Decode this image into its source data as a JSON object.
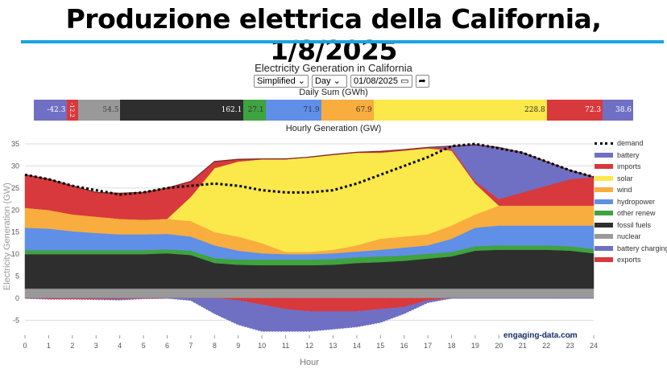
{
  "banner_title": "Produzione elettrica della California, 1/8/2025",
  "colors": {
    "banner_line": "#1aa3e0"
  },
  "controls": {
    "mode": "Simplified",
    "period": "Day",
    "date": "01/08/2025",
    "go_icon": "share-arrow-icon"
  },
  "watermark": "engaging-data.com",
  "daily_sum": {
    "title": "Daily Sum (GWh)",
    "segments": [
      {
        "name": "battery charging",
        "value": "-42.3",
        "abs": 42.3,
        "color": "#6f6fc4",
        "text": "#fff"
      },
      {
        "name": "exports",
        "value": "-12.2",
        "abs": 12.2,
        "color": "#d8393c",
        "text": "#fff"
      },
      {
        "name": "nuclear",
        "value": "54.5",
        "abs": 54.5,
        "color": "#999999",
        "text": "#444"
      },
      {
        "name": "fossil fuels",
        "value": "162.1",
        "abs": 162.1,
        "color": "#2e2e2e",
        "text": "#fff"
      },
      {
        "name": "other renew",
        "value": "27.1",
        "abs": 27.1,
        "color": "#3fa33f",
        "text": "#333"
      },
      {
        "name": "hydropower",
        "value": "71.9",
        "abs": 71.9,
        "color": "#5f8fe6",
        "text": "#335"
      },
      {
        "name": "wind",
        "value": "67.9",
        "abs": 67.9,
        "color": "#f8ad3e",
        "text": "#333"
      },
      {
        "name": "solar",
        "value": "228.8",
        "abs": 228.8,
        "color": "#fbe84a",
        "text": "#333"
      },
      {
        "name": "imports",
        "value": "72.3",
        "abs": 72.3,
        "color": "#d8393c",
        "text": "#fff"
      },
      {
        "name": "battery",
        "value": "38.6",
        "abs": 38.6,
        "color": "#6f6fc4",
        "text": "#fff"
      }
    ]
  },
  "chart_data": {
    "type": "area",
    "title": "Electricity Generation in California",
    "subtitle": "Hourly Generation (GW)",
    "xlabel": "Hour",
    "ylabel": "Electricity Generation (GW)",
    "xlim": [
      0,
      24
    ],
    "ylim": [
      -8.3,
      36.5
    ],
    "xticks": [
      0,
      1,
      2,
      3,
      4,
      5,
      6,
      7,
      8,
      9,
      10,
      11,
      12,
      13,
      14,
      15,
      16,
      17,
      18,
      19,
      20,
      21,
      22,
      23,
      24
    ],
    "yticks": [
      -5,
      0,
      5,
      10,
      15,
      20,
      25,
      30,
      35
    ],
    "legend_position": "right",
    "x": [
      0,
      1,
      2,
      3,
      4,
      5,
      6,
      7,
      8,
      9,
      10,
      11,
      12,
      13,
      14,
      15,
      16,
      17,
      18,
      19,
      20,
      21,
      22,
      23,
      24
    ],
    "stacked_series": [
      {
        "name": "nuclear",
        "color": "#999999",
        "values": [
          2.2,
          2.2,
          2.2,
          2.2,
          2.2,
          2.2,
          2.2,
          2.2,
          2.2,
          2.2,
          2.2,
          2.2,
          2.2,
          2.2,
          2.2,
          2.2,
          2.2,
          2.2,
          2.2,
          2.2,
          2.2,
          2.2,
          2.2,
          2.2,
          2.2
        ]
      },
      {
        "name": "fossil fuels",
        "color": "#2e2e2e",
        "values": [
          7.8,
          7.8,
          7.8,
          7.8,
          7.8,
          7.8,
          8,
          7.6,
          5.8,
          5.4,
          5.3,
          5.3,
          5.3,
          5.4,
          5.8,
          6,
          6.3,
          6.8,
          7.3,
          8.6,
          8.8,
          8.8,
          8.8,
          8.6,
          8
        ]
      },
      {
        "name": "other renew",
        "color": "#3fa33f",
        "values": [
          0.9,
          0.9,
          0.9,
          0.9,
          0.9,
          0.9,
          0.9,
          1,
          1.1,
          1.2,
          1.3,
          1.3,
          1.3,
          1.3,
          1.3,
          1.3,
          1.2,
          1.1,
          1,
          1,
          1,
          1,
          1,
          1,
          1
        ]
      },
      {
        "name": "hydropower",
        "color": "#5f8fe6",
        "values": [
          5.1,
          4.9,
          4.3,
          3.9,
          3.6,
          3.6,
          3.5,
          3.2,
          2.9,
          2,
          1.4,
          1.2,
          1.2,
          1.3,
          1.3,
          1.5,
          1.8,
          1.9,
          3,
          4.2,
          4.5,
          4.5,
          4.5,
          4.7,
          5.3
        ]
      },
      {
        "name": "wind",
        "color": "#f8ad3e",
        "values": [
          4.5,
          4.2,
          3.8,
          3.7,
          3.5,
          3.3,
          3.4,
          3.5,
          3,
          3.2,
          2.3,
          0.5,
          0.5,
          0.8,
          1.4,
          2.5,
          2.5,
          2.5,
          3,
          3,
          4.5,
          4.5,
          4.5,
          4.5,
          4.5
        ]
      },
      {
        "name": "solar",
        "color": "#fbe84a",
        "values": [
          0,
          0,
          0,
          0,
          0,
          0,
          0,
          5.5,
          14.5,
          17,
          19,
          21,
          21.5,
          21.5,
          21,
          19.5,
          19.5,
          19.5,
          17,
          7,
          0,
          0,
          0,
          0,
          0
        ]
      },
      {
        "name": "imports",
        "color": "#d8393c",
        "values": [
          7.5,
          7,
          6.5,
          5.5,
          5.8,
          6.2,
          7,
          3.5,
          1.5,
          0.5,
          0.1,
          0.1,
          0,
          0.1,
          0.1,
          0.3,
          0.2,
          0.2,
          0.5,
          0.5,
          1.5,
          3,
          4.5,
          6,
          6.5
        ]
      },
      {
        "name": "battery",
        "color": "#6f6fc4",
        "values": [
          0,
          0,
          0,
          0,
          0,
          0,
          0,
          0,
          0,
          0,
          0,
          0,
          0,
          0,
          0,
          0,
          0,
          0,
          0.5,
          8.3,
          11.7,
          9,
          5.5,
          2,
          0
        ]
      }
    ],
    "negative_series": [
      {
        "name": "exports",
        "color": "#d8393c",
        "values": [
          0,
          -0.2,
          -0.2,
          -0.2,
          -0.2,
          -0.1,
          0,
          0,
          0,
          -0.5,
          -1.5,
          -2.5,
          -3,
          -3,
          -3,
          -2.5,
          -2,
          -0.5,
          0,
          0,
          0,
          0,
          0,
          0,
          0
        ]
      },
      {
        "name": "battery charging",
        "color": "#6f6fc4",
        "values": [
          0,
          0,
          0,
          -0.1,
          -0.2,
          0,
          0,
          -0.5,
          -3.5,
          -5.5,
          -6,
          -5,
          -4.5,
          -4,
          -3.5,
          -3,
          -1.5,
          -0.5,
          0,
          0,
          0,
          0,
          0,
          0,
          0
        ]
      }
    ],
    "demand": {
      "name": "demand",
      "color": "#000000",
      "values": [
        28,
        27,
        25.5,
        24.5,
        23.5,
        24,
        25,
        25.5,
        26,
        25.5,
        24.5,
        24,
        24,
        24.5,
        26,
        28,
        30,
        32,
        34.5,
        35,
        34,
        33,
        31,
        29,
        27.5
      ]
    },
    "legend": [
      "demand",
      "battery",
      "imports",
      "solar",
      "wind",
      "hydropower",
      "other renew",
      "fossil fuels",
      "nuclear",
      "battery charging",
      "exports"
    ]
  }
}
